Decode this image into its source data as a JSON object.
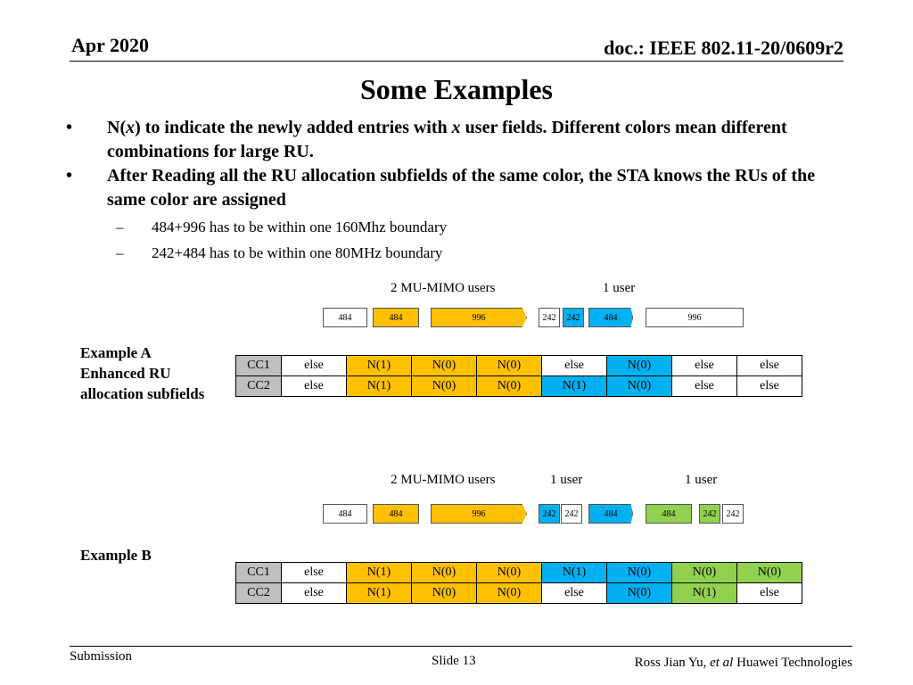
{
  "header": {
    "date": "Apr 2020",
    "doc": "doc.: IEEE 802.11-20/0609r2"
  },
  "title": "Some Examples",
  "bullets": [
    {
      "prefix": "N(",
      "var": "x",
      "suffix": ") to indicate the newly added entries with ",
      "var2": "x",
      "rest": " user fields. Different colors mean different combinations for large RU."
    },
    {
      "text": "After Reading all the RU allocation subfields of the same color, the STA knows the RUs of the same color are assigned"
    }
  ],
  "subbullets": [
    "484+996 has to be within one 160Mhz boundary",
    "242+484 has to be within one 80MHz boundary"
  ],
  "exampleA": {
    "label_line1": "Example A",
    "label_line2": "Enhanced RU",
    "label_line3": "allocation subfields",
    "top_labels": [
      "2 MU-MIMO users",
      "1 user"
    ],
    "ru_blocks": [
      "484",
      "484",
      "996",
      "242",
      "242",
      "484",
      "996"
    ],
    "rows": [
      {
        "head": "CC1",
        "cells": [
          "else",
          "N(1)",
          "N(0)",
          "N(0)",
          "else",
          "N(0)",
          "else",
          "else"
        ]
      },
      {
        "head": "CC2",
        "cells": [
          "else",
          "N(1)",
          "N(0)",
          "N(0)",
          "N(1)",
          "N(0)",
          "else",
          "else"
        ]
      }
    ]
  },
  "exampleB": {
    "label": "Example B",
    "top_labels": [
      "2 MU-MIMO users",
      "1 user",
      "1 user"
    ],
    "ru_blocks": [
      "484",
      "484",
      "996",
      "242",
      "242",
      "484",
      "484",
      "242",
      "242"
    ],
    "rows": [
      {
        "head": "CC1",
        "cells": [
          "else",
          "N(1)",
          "N(0)",
          "N(0)",
          "N(1)",
          "N(0)",
          "N(0)",
          "N(0)"
        ]
      },
      {
        "head": "CC2",
        "cells": [
          "else",
          "N(1)",
          "N(0)",
          "N(0)",
          "else",
          "N(0)",
          "N(1)",
          "else"
        ]
      }
    ]
  },
  "colors": {
    "yellow": "#ffc000",
    "blue": "#00b0f0",
    "green": "#92d050",
    "header_gray": "#bfbfbf"
  },
  "footer": {
    "left": "Submission",
    "center": "Slide 13",
    "author": "Ross Jian Yu, ",
    "etal": "et al",
    "org": " Huawei Technologies"
  }
}
